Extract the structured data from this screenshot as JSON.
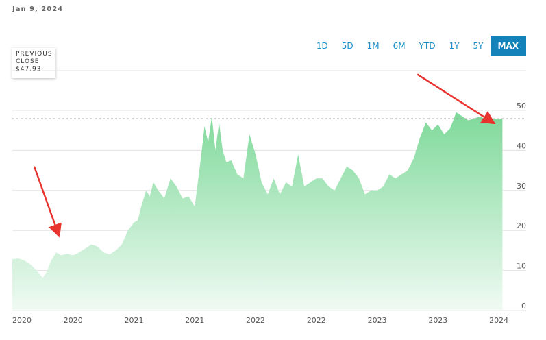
{
  "header": {
    "date": "Jan 9, 2024"
  },
  "ranges": [
    {
      "label": "1D",
      "active": false
    },
    {
      "label": "5D",
      "active": false
    },
    {
      "label": "1M",
      "active": false
    },
    {
      "label": "6M",
      "active": false
    },
    {
      "label": "YTD",
      "active": false
    },
    {
      "label": "1Y",
      "active": false
    },
    {
      "label": "5Y",
      "active": false
    },
    {
      "label": "MAX",
      "active": true
    }
  ],
  "previous_close": {
    "label_line1": "PREVIOUS",
    "label_line2": "CLOSE",
    "value": "$47.93"
  },
  "colors": {
    "area_top": "#7ed99a",
    "area_bottom": "#f0faf3",
    "grid": "#e3e3e3",
    "arrow": "#e8332f",
    "accent": "#1282b8"
  },
  "chart_data": {
    "type": "area",
    "title": "",
    "xlabel": "",
    "ylabel": "",
    "ylim": [
      0,
      50
    ],
    "yticks": [
      0,
      10,
      20,
      30,
      40,
      50
    ],
    "previous_close": 47.93,
    "xtick_labels": [
      "2020",
      "2020",
      "2021",
      "2021",
      "2022",
      "2022",
      "2023",
      "2023",
      "2024"
    ],
    "xrange": [
      2020.0,
      2024.05
    ],
    "xtick_positions": [
      2020.0,
      2020.5,
      2021.0,
      2021.5,
      2022.0,
      2022.5,
      2023.0,
      2023.5,
      2024.0
    ],
    "grid": true,
    "annotations": [
      {
        "type": "arrow",
        "from": [
          2020.18,
          36
        ],
        "to": [
          2020.38,
          19
        ]
      },
      {
        "type": "arrow",
        "from": [
          2023.33,
          59
        ],
        "to": [
          2023.95,
          47
        ]
      }
    ],
    "x": [
      2020.0,
      2020.05,
      2020.1,
      2020.15,
      2020.2,
      2020.25,
      2020.28,
      2020.32,
      2020.36,
      2020.4,
      2020.45,
      2020.5,
      2020.55,
      2020.6,
      2020.65,
      2020.7,
      2020.75,
      2020.8,
      2020.85,
      2020.9,
      2020.95,
      2021.0,
      2021.03,
      2021.06,
      2021.1,
      2021.13,
      2021.16,
      2021.2,
      2021.25,
      2021.3,
      2021.35,
      2021.4,
      2021.45,
      2021.5,
      2021.55,
      2021.58,
      2021.61,
      2021.64,
      2021.67,
      2021.7,
      2021.73,
      2021.76,
      2021.8,
      2021.85,
      2021.9,
      2021.95,
      2022.0,
      2022.05,
      2022.1,
      2022.15,
      2022.2,
      2022.25,
      2022.3,
      2022.35,
      2022.4,
      2022.45,
      2022.5,
      2022.55,
      2022.6,
      2022.65,
      2022.7,
      2022.75,
      2022.8,
      2022.85,
      2022.9,
      2022.95,
      2023.0,
      2023.05,
      2023.1,
      2023.15,
      2023.2,
      2023.25,
      2023.3,
      2023.35,
      2023.4,
      2023.45,
      2023.5,
      2023.55,
      2023.6,
      2023.65,
      2023.7,
      2023.75,
      2023.8,
      2023.85,
      2023.9,
      2023.95,
      2024.0,
      2024.03
    ],
    "y": [
      12.8,
      13.0,
      12.5,
      11.5,
      10.0,
      8.2,
      9.5,
      12.5,
      14.5,
      13.8,
      14.2,
      13.8,
      14.5,
      15.5,
      16.5,
      16.0,
      14.5,
      14.0,
      15.0,
      16.5,
      20.0,
      22.0,
      22.5,
      26.0,
      30.0,
      28.5,
      32.0,
      30.0,
      28.0,
      33.0,
      31.0,
      28.0,
      28.5,
      26.0,
      38.0,
      46.0,
      42.0,
      48.5,
      40.0,
      47.0,
      40.0,
      37.0,
      37.5,
      34.0,
      33.0,
      44.0,
      39.0,
      32.0,
      29.0,
      33.0,
      29.0,
      32.0,
      31.0,
      39.0,
      31.0,
      32.0,
      33.0,
      33.0,
      31.0,
      30.0,
      33.0,
      36.0,
      35.0,
      33.0,
      29.0,
      30.0,
      30.0,
      31.0,
      34.0,
      33.0,
      34.0,
      35.0,
      38.0,
      43.0,
      47.0,
      45.0,
      46.5,
      44.0,
      45.5,
      49.5,
      48.5,
      47.5,
      48.0,
      48.5,
      47.5,
      47.9,
      47.9,
      47.9
    ]
  }
}
